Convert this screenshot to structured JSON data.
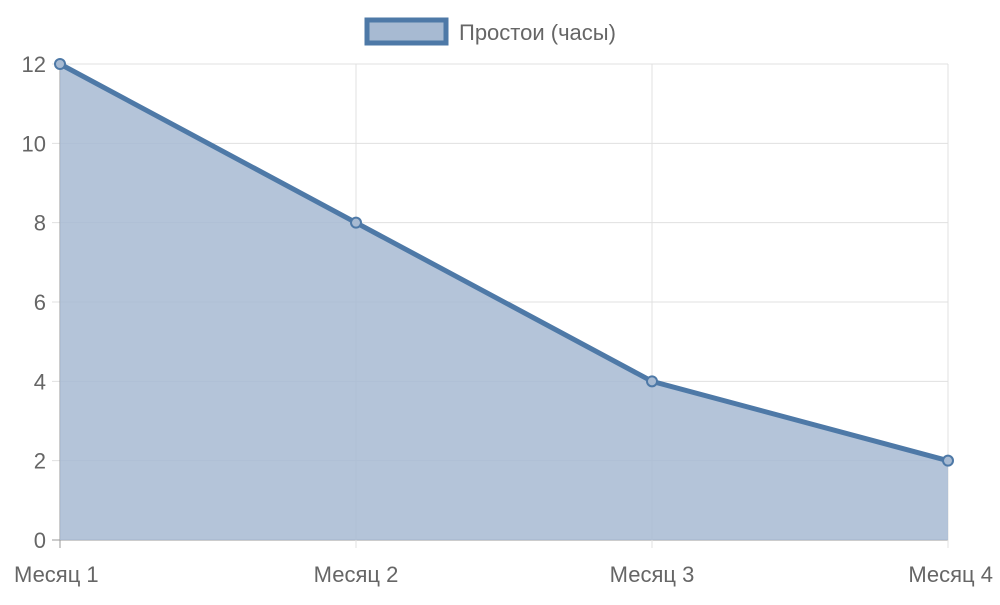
{
  "chart_data": {
    "type": "area",
    "categories": [
      "Месяц 1",
      "Месяц 2",
      "Месяц 3",
      "Месяц 4"
    ],
    "series": [
      {
        "name": "Простои (часы)",
        "values": [
          12,
          8,
          4,
          2
        ],
        "color": "#4e79a7",
        "fill": "#a7bad2"
      }
    ],
    "ylim": [
      0,
      12
    ],
    "yticks": [
      0,
      2,
      4,
      6,
      8,
      10,
      12
    ],
    "grid": true,
    "legend": "top"
  }
}
